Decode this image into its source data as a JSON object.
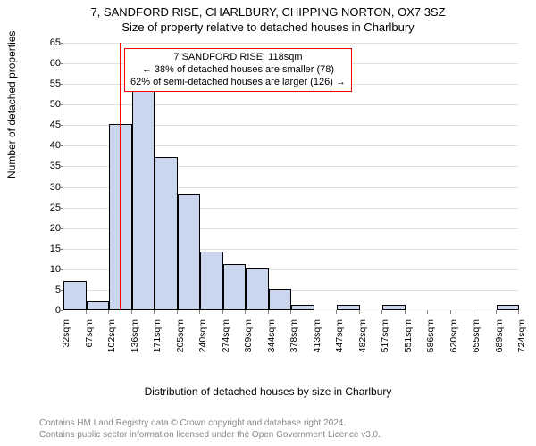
{
  "title": {
    "line1": "7, SANDFORD RISE, CHARLBURY, CHIPPING NORTON, OX7 3SZ",
    "line2": "Size of property relative to detached houses in Charlbury"
  },
  "chart": {
    "type": "histogram",
    "ylim": [
      0,
      65
    ],
    "ytick_step": 5,
    "bar_fill": "#c9d6ee",
    "bar_stroke": "#000000",
    "grid_color": "#e0e0e0",
    "axis_color": "#808080",
    "bg_color": "#ffffff",
    "reference_line_color": "#ff0000",
    "reference_value": 118,
    "x_tick_labels": [
      "32sqm",
      "67sqm",
      "102sqm",
      "136sqm",
      "171sqm",
      "205sqm",
      "240sqm",
      "274sqm",
      "309sqm",
      "344sqm",
      "378sqm",
      "413sqm",
      "447sqm",
      "482sqm",
      "517sqm",
      "551sqm",
      "586sqm",
      "620sqm",
      "655sqm",
      "689sqm",
      "724sqm"
    ],
    "bars": [
      7,
      2,
      45,
      55,
      37,
      28,
      14,
      11,
      10,
      5,
      1,
      0,
      1,
      0,
      1,
      0,
      0,
      0,
      0,
      1
    ],
    "y_axis_label": "Number of detached properties",
    "x_axis_label": "Distribution of detached houses by size in Charlbury",
    "x_domain": [
      32,
      724
    ]
  },
  "annotation": {
    "line1": "7 SANDFORD RISE: 118sqm",
    "line2": "← 38% of detached houses are smaller (78)",
    "line3": "62% of semi-detached houses are larger (126) →"
  },
  "footer": {
    "line1": "Contains HM Land Registry data © Crown copyright and database right 2024.",
    "line2": "Contains public sector information licensed under the Open Government Licence v3.0."
  },
  "fonts": {
    "title_size": 13,
    "axis_label_size": 12,
    "tick_size": 11,
    "annotation_size": 11,
    "footer_size": 10
  }
}
